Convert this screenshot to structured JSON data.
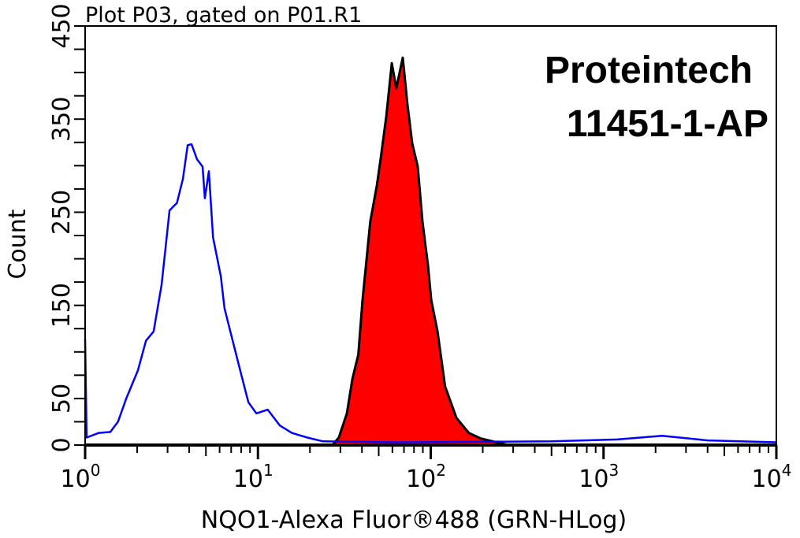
{
  "chart_data": {
    "type": "area",
    "title": "Plot P03, gated on P01.R1",
    "xlabel": "NQO1-Alexa Fluor®488 (GRN-HLog)",
    "ylabel": "Count",
    "xscale": "log",
    "xlim": [
      1,
      10000
    ],
    "ylim": [
      0,
      450
    ],
    "x_ticks": [
      {
        "base": "10",
        "exp": "0",
        "value": 1
      },
      {
        "base": "10",
        "exp": "1",
        "value": 10
      },
      {
        "base": "10",
        "exp": "2",
        "value": 100
      },
      {
        "base": "10",
        "exp": "3",
        "value": 1000
      },
      {
        "base": "10",
        "exp": "4",
        "value": 10000
      }
    ],
    "y_tick_labels": [
      "0",
      "50",
      "150",
      "250",
      "350",
      "450"
    ],
    "y_tick_step": 25,
    "grid": false,
    "annotations": [
      "Proteintech",
      "11451-1-AP"
    ],
    "series": [
      {
        "style": "line",
        "color": "#0000ff",
        "points": [
          [
            1,
            114
          ],
          [
            1.02,
            8
          ],
          [
            1.2,
            13
          ],
          [
            1.4,
            14
          ],
          [
            1.55,
            25
          ],
          [
            1.73,
            50
          ],
          [
            2.02,
            80
          ],
          [
            2.25,
            112
          ],
          [
            2.49,
            122
          ],
          [
            2.77,
            172
          ],
          [
            3.08,
            252
          ],
          [
            3.4,
            260
          ],
          [
            3.68,
            286
          ],
          [
            3.92,
            322
          ],
          [
            4.13,
            323
          ],
          [
            4.44,
            307
          ],
          [
            4.78,
            299
          ],
          [
            4.93,
            265
          ],
          [
            5.2,
            294
          ],
          [
            5.5,
            223
          ],
          [
            6.1,
            181
          ],
          [
            6.4,
            147
          ],
          [
            7.1,
            114
          ],
          [
            7.9,
            80
          ],
          [
            8.8,
            46
          ],
          [
            9.8,
            34
          ],
          [
            11.4,
            38
          ],
          [
            13.4,
            21
          ],
          [
            15.7,
            13
          ],
          [
            19.3,
            8
          ],
          [
            23.8,
            4
          ],
          [
            61.5,
            3
          ],
          [
            500,
            4
          ],
          [
            1200,
            6
          ],
          [
            2180,
            10
          ],
          [
            4000,
            5
          ],
          [
            10000,
            3
          ]
        ]
      },
      {
        "style": "filled",
        "color": "#ff0000",
        "outline": "#000000",
        "points": [
          [
            27,
            0
          ],
          [
            29.4,
            8
          ],
          [
            32.7,
            34
          ],
          [
            35.2,
            71
          ],
          [
            38.1,
            97
          ],
          [
            40.3,
            156
          ],
          [
            44.7,
            240
          ],
          [
            48.7,
            278
          ],
          [
            51.3,
            307
          ],
          [
            55.3,
            353
          ],
          [
            59.5,
            410
          ],
          [
            63.2,
            383
          ],
          [
            68.9,
            416
          ],
          [
            73.3,
            366
          ],
          [
            78.1,
            324
          ],
          [
            84.1,
            299
          ],
          [
            89.6,
            240
          ],
          [
            96.4,
            193
          ],
          [
            100.6,
            156
          ],
          [
            109.4,
            122
          ],
          [
            121,
            63
          ],
          [
            141,
            29
          ],
          [
            166,
            13
          ],
          [
            195,
            7
          ],
          [
            240,
            3
          ],
          [
            280,
            0
          ]
        ]
      }
    ]
  }
}
